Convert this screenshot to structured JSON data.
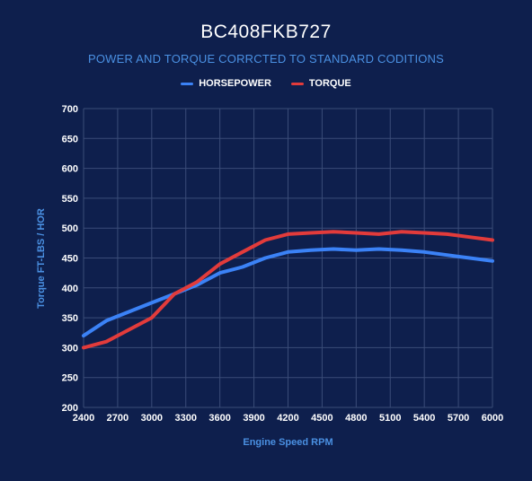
{
  "chart_data": {
    "type": "line",
    "title": "BC408FKB727",
    "subtitle": "POWER AND TORQUE CORRCTED TO STANDARD CODITIONS",
    "xlabel": "Engine Speed RPM",
    "ylabel": "Torque FT-LBS / HOR",
    "xlim": [
      2400,
      6000
    ],
    "ylim": [
      200,
      700
    ],
    "x_ticks": [
      "2400",
      "2700",
      "3000",
      "3300",
      "3600",
      "3900",
      "4200",
      "4500",
      "4800",
      "5100",
      "5400",
      "5700",
      "6000"
    ],
    "y_ticks": [
      "200",
      "250",
      "300",
      "350",
      "400",
      "450",
      "500",
      "550",
      "600",
      "650",
      "700"
    ],
    "grid": true,
    "legend_position": "top-center",
    "series": [
      {
        "name": "HORSEPOWER",
        "color": "#3b82f6",
        "x": [
          2400,
          2600,
          2800,
          3000,
          3200,
          3400,
          3600,
          3800,
          4000,
          4200,
          4400,
          4600,
          4800,
          5000,
          5200,
          5400,
          5600,
          5800,
          6000
        ],
        "values": [
          320,
          345,
          360,
          375,
          390,
          405,
          425,
          435,
          450,
          460,
          463,
          465,
          463,
          465,
          463,
          460,
          455,
          450,
          445
        ]
      },
      {
        "name": "TORQUE",
        "color": "#e23b3b",
        "x": [
          2400,
          2600,
          2800,
          3000,
          3200,
          3400,
          3600,
          3800,
          4000,
          4200,
          4400,
          4600,
          4800,
          5000,
          5200,
          5400,
          5600,
          5800,
          6000
        ],
        "values": [
          300,
          310,
          330,
          350,
          390,
          410,
          440,
          460,
          480,
          490,
          492,
          494,
          492,
          490,
          494,
          492,
          490,
          485,
          480
        ]
      }
    ]
  }
}
